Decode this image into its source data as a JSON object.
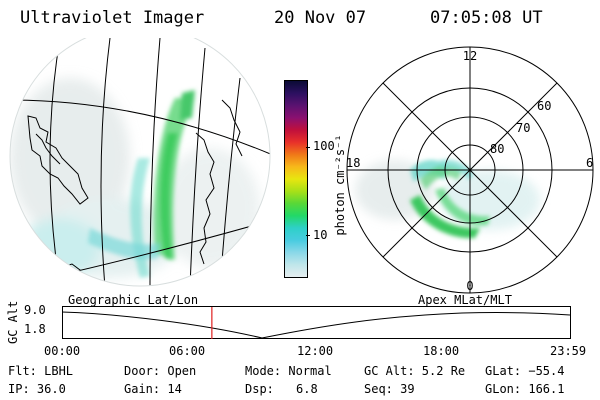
{
  "header": {
    "title": "Ultraviolet Imager",
    "date": "20 Nov 07",
    "time": "07:05:08 UT"
  },
  "colorbar": {
    "unit_label": "photon cm⁻²s⁻¹",
    "ticks": [
      "100",
      "10"
    ],
    "colors": [
      "#0b0b36",
      "#2c1060",
      "#5a1270",
      "#8a1070",
      "#c0103c",
      "#e8302a",
      "#f07818",
      "#f7b81a",
      "#e8e610",
      "#a8e018",
      "#58d838",
      "#22d868",
      "#2ed0c8",
      "#48cce0",
      "#8ad8e8",
      "#c0e6ea",
      "#e6eef0"
    ]
  },
  "polar": {
    "labels": {
      "top": "12",
      "left": "18",
      "right": "6",
      "bottom": "0"
    },
    "rings": [
      "60",
      "70",
      "80"
    ]
  },
  "timeline": {
    "ylabel": "GC Alt",
    "ymax": "9.0",
    "ymin": "1.8",
    "left_title": "Geographic Lat/Lon",
    "right_title": "Apex  MLat/MLT",
    "ticks": [
      "00:00",
      "06:00",
      "12:00",
      "18:00",
      "23:59"
    ],
    "current_hours": 7.08
  },
  "footer": {
    "flt": "Flt: LBHL",
    "door": "Door: Open",
    "mode": "Mode: Normal",
    "gcalt": "GC Alt: 5.2 Re",
    "glat": "GLat: −55.4",
    "ip": "IP: 36.0",
    "gain": "Gain: 14",
    "dsp_label": "Dsp:",
    "dsp_value": "6.8",
    "seq": "Seq: 39",
    "glon": "GLon: 166.1"
  }
}
